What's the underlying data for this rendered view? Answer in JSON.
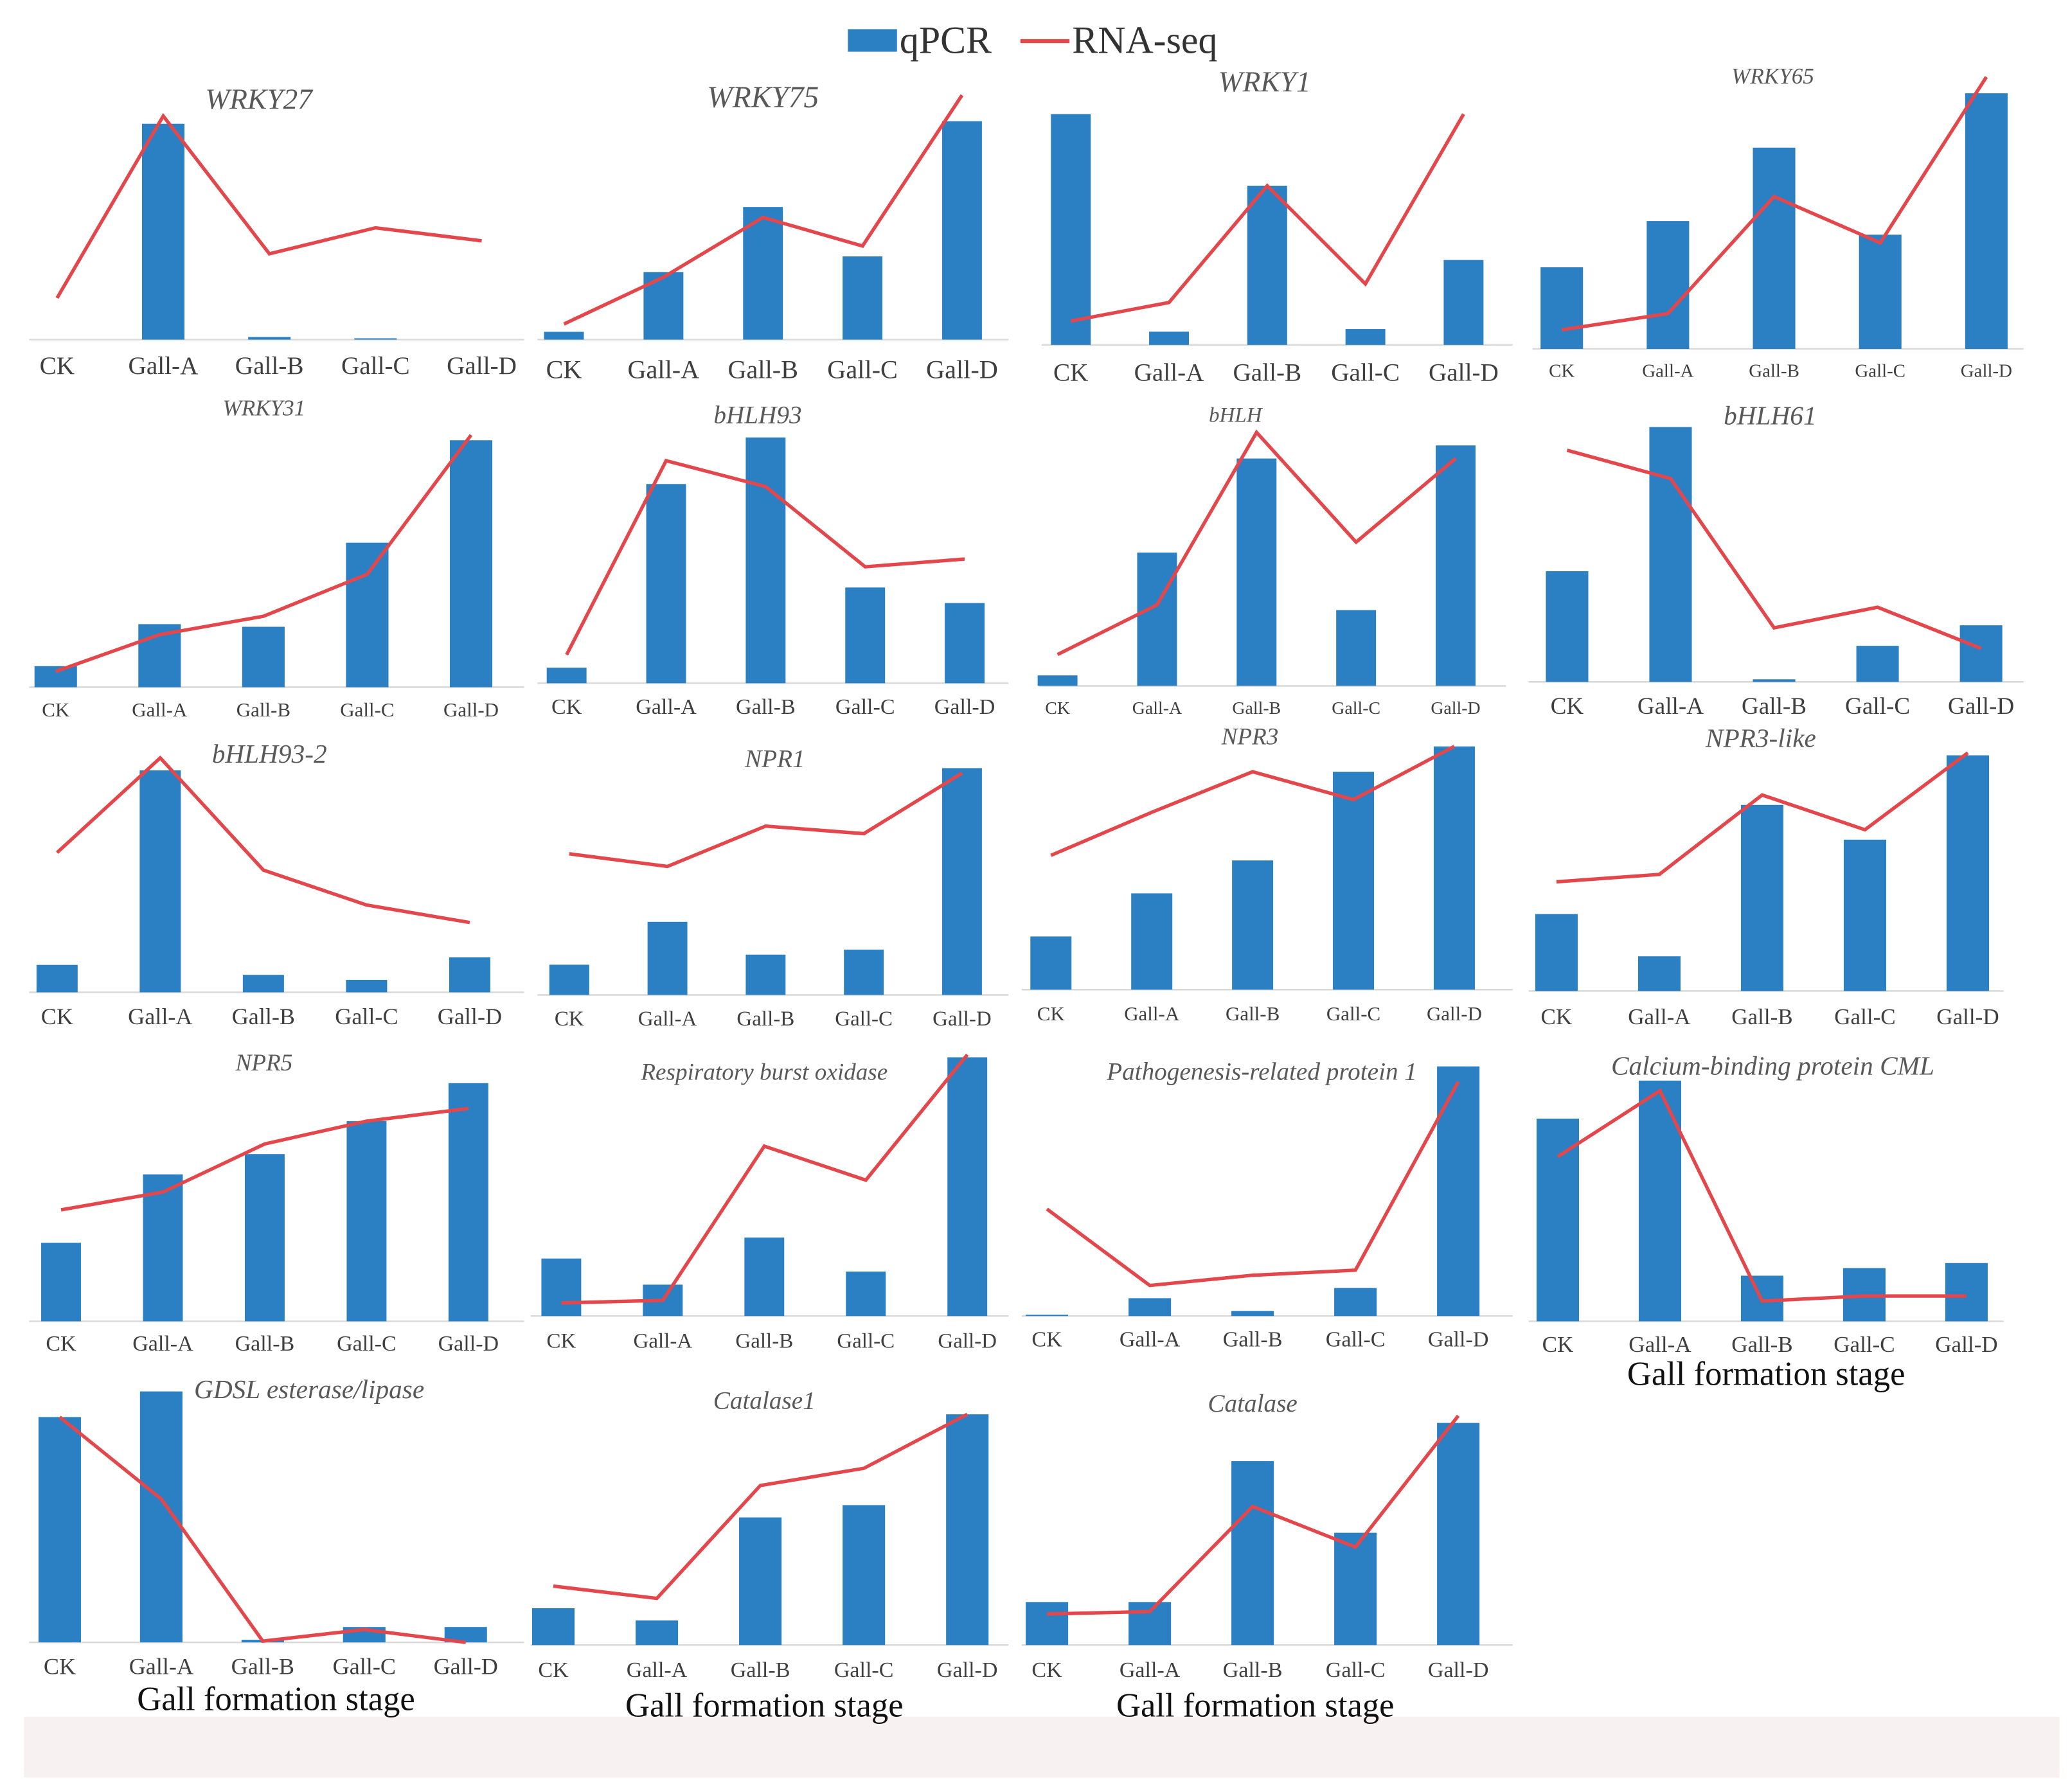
{
  "legend": {
    "qpcr_label": "qPCR",
    "rnaseq_label": "RNA-seq"
  },
  "colors": {
    "qpcr_bar": "#2b80c3",
    "rnaseq_line": "#e4474b",
    "axis_line": "#d9d9d9",
    "footer_band": "#f7f2f1"
  },
  "chart_data": [
    {
      "type": "bar",
      "title": "WRKY27",
      "categories": [
        "CK",
        "Gall-A",
        "Gall-B",
        "Gall-C",
        "Gall-D"
      ],
      "qpcr_values": [
        0,
        83,
        1,
        0.5,
        0
      ],
      "rnaseq_values": [
        16,
        86,
        33,
        43,
        38
      ],
      "ylim": [
        0,
        100
      ]
    },
    {
      "type": "bar",
      "title": "WRKY75",
      "categories": [
        "CK",
        "Gall-A",
        "Gall-B",
        "Gall-C",
        "Gall-D"
      ],
      "qpcr_values": [
        3,
        26,
        51,
        32,
        84
      ],
      "rnaseq_values": [
        6,
        24,
        47,
        36,
        94
      ],
      "ylim": [
        0,
        100
      ]
    },
    {
      "type": "bar",
      "title": "WRKY1",
      "categories": [
        "CK",
        "Gall-A",
        "Gall-B",
        "Gall-C",
        "Gall-D"
      ],
      "qpcr_values": [
        87,
        5,
        60,
        6,
        32
      ],
      "rnaseq_values": [
        9,
        16,
        60,
        23,
        87
      ],
      "ylim": [
        0,
        100
      ]
    },
    {
      "type": "bar",
      "title": "WRKY65",
      "categories": [
        "CK",
        "Gall-A",
        "Gall-B",
        "Gall-C",
        "Gall-D"
      ],
      "qpcr_values": [
        30,
        47,
        74,
        42,
        94
      ],
      "rnaseq_values": [
        7,
        13,
        56,
        39,
        100
      ],
      "ylim": [
        0,
        100
      ]
    },
    {
      "type": "bar",
      "title": "WRKY31",
      "categories": [
        "CK",
        "Gall-A",
        "Gall-B",
        "Gall-C",
        "Gall-D"
      ],
      "qpcr_values": [
        8,
        24,
        23,
        55,
        94
      ],
      "rnaseq_values": [
        6,
        20,
        27,
        43,
        96
      ],
      "ylim": [
        0,
        100
      ]
    },
    {
      "type": "bar",
      "title": "bHLH93",
      "categories": [
        "CK",
        "Gall-A",
        "Gall-B",
        "Gall-C",
        "Gall-D"
      ],
      "qpcr_values": [
        6,
        77,
        95,
        37,
        31
      ],
      "rnaseq_values": [
        11,
        86,
        76,
        45,
        48
      ],
      "ylim": [
        0,
        100
      ]
    },
    {
      "type": "bar",
      "title": "bHLH",
      "categories": [
        "CK",
        "Gall-A",
        "Gall-B",
        "Gall-C",
        "Gall-D"
      ],
      "qpcr_values": [
        4,
        51,
        87,
        29,
        92
      ],
      "rnaseq_values": [
        12,
        31,
        97,
        55,
        87
      ],
      "ylim": [
        0,
        100
      ]
    },
    {
      "type": "bar",
      "title": "bHLH61",
      "categories": [
        "CK",
        "Gall-A",
        "Gall-B",
        "Gall-C",
        "Gall-D"
      ],
      "qpcr_values": [
        43,
        99,
        1,
        14,
        22
      ],
      "rnaseq_values": [
        90,
        79,
        21,
        29,
        13
      ],
      "ylim": [
        0,
        100
      ]
    },
    {
      "type": "bar",
      "title": "bHLH93-2",
      "categories": [
        "CK",
        "Gall-A",
        "Gall-B",
        "Gall-C",
        "Gall-D"
      ],
      "qpcr_values": [
        11,
        89,
        7,
        5,
        14
      ],
      "rnaseq_values": [
        56,
        94,
        49,
        35,
        28
      ],
      "ylim": [
        0,
        100
      ]
    },
    {
      "type": "bar",
      "title": "NPR1",
      "categories": [
        "CK",
        "Gall-A",
        "Gall-B",
        "Gall-C",
        "Gall-D"
      ],
      "qpcr_values": [
        12,
        29,
        16,
        18,
        90
      ],
      "rnaseq_values": [
        56,
        51,
        67,
        64,
        88
      ],
      "ylim": [
        0,
        100
      ]
    },
    {
      "type": "bar",
      "title": "NPR3",
      "categories": [
        "CK",
        "Gall-A",
        "Gall-B",
        "Gall-C",
        "Gall-D"
      ],
      "qpcr_values": [
        21,
        38,
        51,
        86,
        96
      ],
      "rnaseq_values": [
        53,
        70,
        86,
        75,
        96
      ],
      "ylim": [
        0,
        100
      ]
    },
    {
      "type": "bar",
      "title": "NPR3-like",
      "categories": [
        "CK",
        "Gall-A",
        "Gall-B",
        "Gall-C",
        "Gall-D"
      ],
      "qpcr_values": [
        31,
        14,
        75,
        61,
        95
      ],
      "rnaseq_values": [
        44,
        47,
        79,
        65,
        96
      ],
      "ylim": [
        0,
        100
      ]
    },
    {
      "type": "bar",
      "title": "NPR5",
      "categories": [
        "CK",
        "Gall-A",
        "Gall-B",
        "Gall-C",
        "Gall-D"
      ],
      "qpcr_values": [
        31,
        58,
        66,
        79,
        94
      ],
      "rnaseq_values": [
        44,
        51,
        70,
        79,
        84
      ],
      "ylim": [
        0,
        100
      ]
    },
    {
      "type": "bar",
      "title": "Respiratory burst oxidase",
      "categories": [
        "CK",
        "Gall-A",
        "Gall-B",
        "Gall-C",
        "Gall-D"
      ],
      "qpcr_values": [
        22,
        12,
        30,
        17,
        99
      ],
      "rnaseq_values": [
        5,
        6,
        65,
        52,
        100
      ],
      "ylim": [
        0,
        100
      ]
    },
    {
      "type": "bar",
      "title": "Pathogenesis-related protein 1",
      "categories": [
        "CK",
        "Gall-A",
        "Gall-B",
        "Gall-C",
        "Gall-D"
      ],
      "qpcr_values": [
        0.5,
        7,
        2,
        11,
        98
      ],
      "rnaseq_values": [
        42,
        12,
        16,
        18,
        92
      ],
      "ylim": [
        0,
        100
      ]
    },
    {
      "type": "bar",
      "title": "Calcium-binding protein CML",
      "categories": [
        "CK",
        "Gall-A",
        "Gall-B",
        "Gall-C",
        "Gall-D"
      ],
      "qpcr_values": [
        80,
        95,
        18,
        21,
        23
      ],
      "rnaseq_values": [
        65,
        91,
        8,
        10,
        10
      ],
      "ylim": [
        0,
        100
      ],
      "xlabel": "Gall formation stage"
    },
    {
      "type": "bar",
      "title": "GDSL esterase/lipase",
      "categories": [
        "CK",
        "Gall-A",
        "Gall-B",
        "Gall-C",
        "Gall-D"
      ],
      "qpcr_values": [
        88,
        98,
        1,
        6,
        6
      ],
      "rnaseq_values": [
        88,
        56,
        0.5,
        5,
        0
      ],
      "ylim": [
        0,
        100
      ],
      "xlabel": "Gall formation stage"
    },
    {
      "type": "bar",
      "title": "Catalase1",
      "categories": [
        "CK",
        "Gall-A",
        "Gall-B",
        "Gall-C",
        "Gall-D"
      ],
      "qpcr_values": [
        15,
        10,
        52,
        57,
        94
      ],
      "rnaseq_values": [
        24,
        19,
        65,
        72,
        94
      ],
      "ylim": [
        0,
        100
      ],
      "xlabel": "Gall formation stage"
    },
    {
      "type": "bar",
      "title": "Catalase",
      "categories": [
        "CK",
        "Gall-A",
        "Gall-B",
        "Gall-C",
        "Gall-D"
      ],
      "qpcr_values": [
        18,
        18,
        77,
        47,
        93
      ],
      "rnaseq_values": [
        13,
        14,
        58,
        41,
        96
      ],
      "ylim": [
        0,
        100
      ],
      "xlabel": "Gall formation stage"
    }
  ]
}
